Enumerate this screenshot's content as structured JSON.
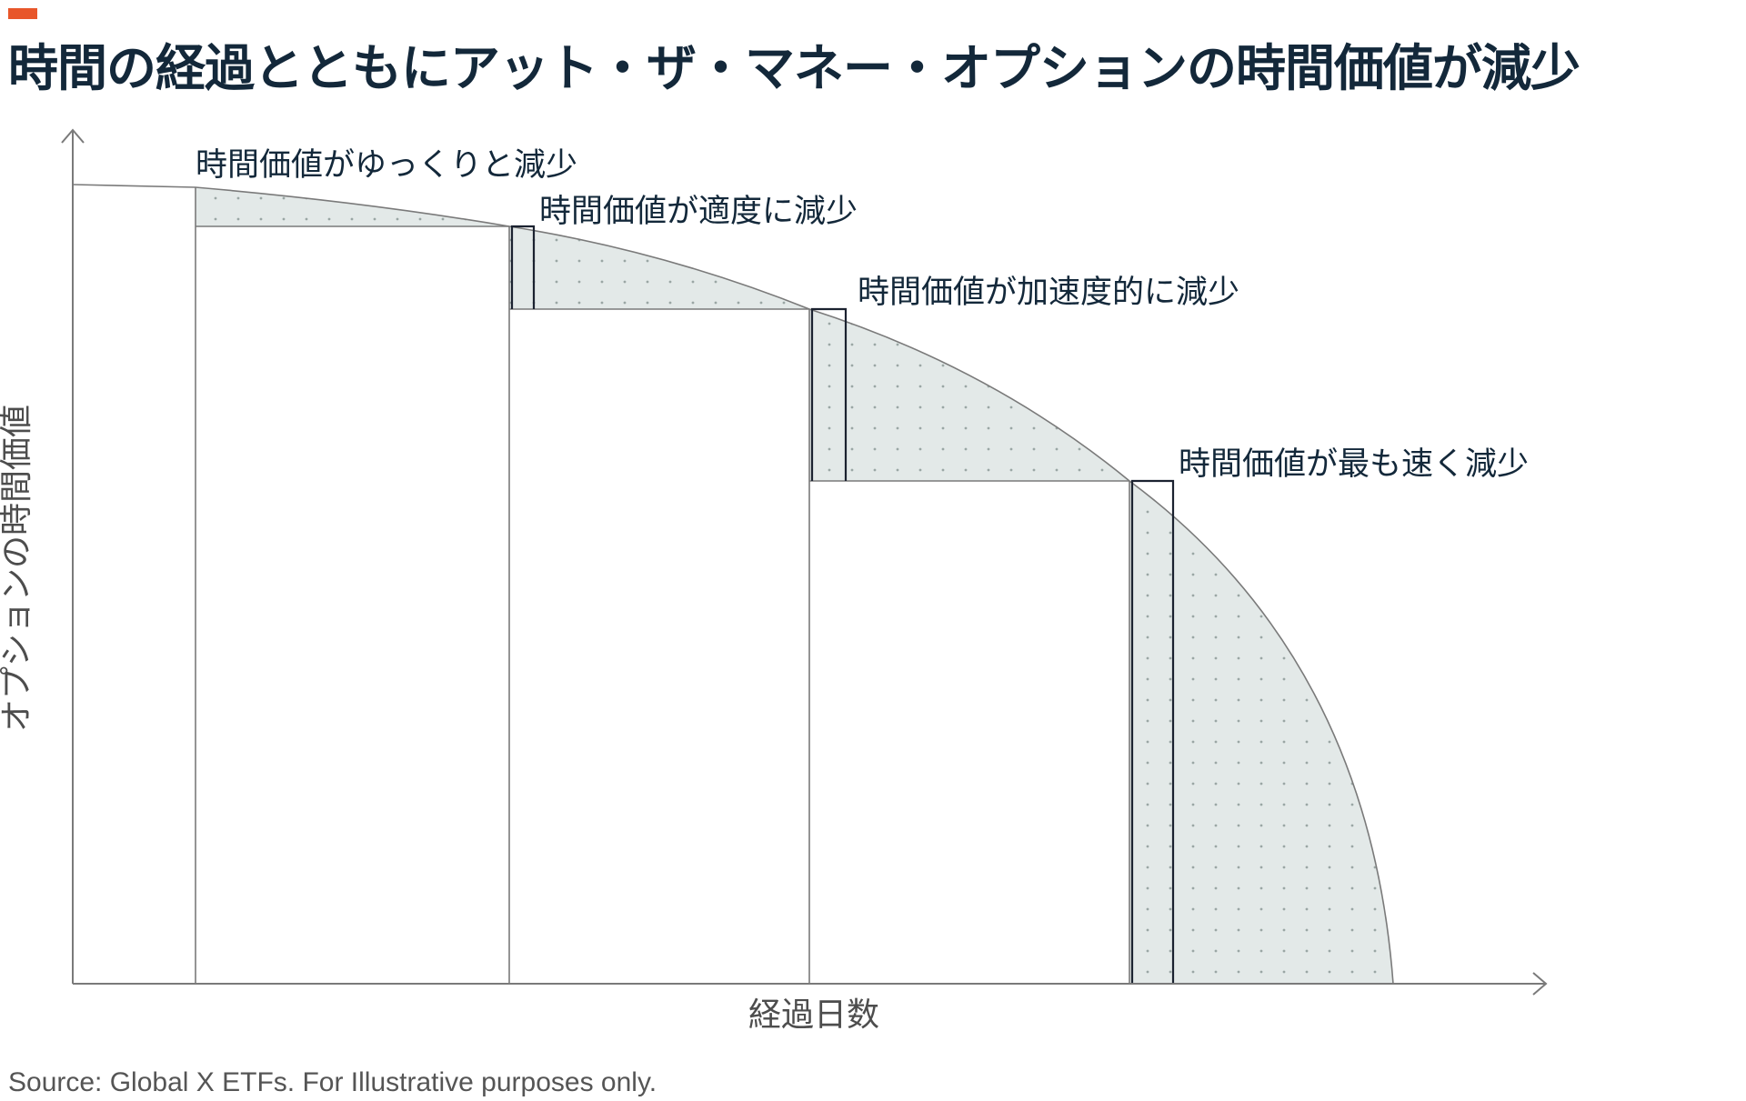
{
  "title": "時間の経過とともにアット・ザ・マネー・オプションの時間価値が減少",
  "axes": {
    "y_label": "オプションの時間価値",
    "x_label": "経過日数"
  },
  "stages": [
    {
      "label": "時間価値がゆっくりと減少"
    },
    {
      "label": "時間価値が適度に減少"
    },
    {
      "label": "時間価値が加速度的に減少"
    },
    {
      "label": "時間価値が最も速く減少"
    }
  ],
  "source": "Source: Global X ETFs. For Illustrative purposes only.",
  "colors": {
    "accent": "#e8562a",
    "title": "#13283a",
    "fill": "#e3e9e8",
    "dot": "#9aa6a4",
    "line": "#7a7a7a",
    "bracket": "#1b2230"
  }
}
